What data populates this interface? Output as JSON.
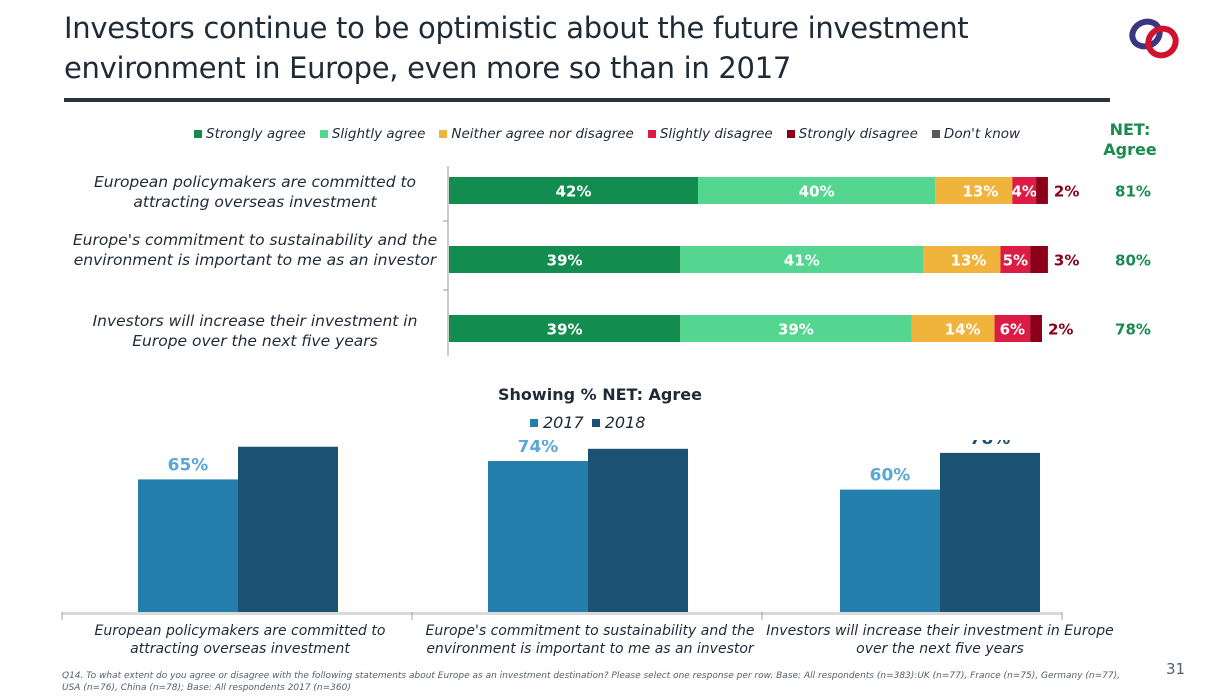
{
  "slide": {
    "title": "Investors continue to be optimistic about the future investment environment in Europe, even more so than in 2017",
    "logo_icon": "interlocking-rings-logo-icon",
    "footnote": "Q14. To what extent do you agree or disagree with the following statements about Europe as an investment destination? Please select one response per row. Base: All respondents (n=383):UK (n=77), France (n=75), Germany (n=77), USA (n=76), China (n=78); Base: All respondents 2017 (n=360)",
    "page_number": "31"
  },
  "chart_data": [
    {
      "type": "bar",
      "orientation": "horizontal-stacked",
      "title": "",
      "categories": [
        "European policymakers are committed to attracting overseas investment",
        "Europe's commitment to sustainability and the environment is important to me as an investor",
        "Investors will increase their investment in Europe over the next five years"
      ],
      "series": [
        {
          "name": "Strongly agree",
          "color": "#138d4f",
          "label_color": "#ffffff",
          "values": [
            42,
            39,
            39
          ]
        },
        {
          "name": "Slightly agree",
          "color": "#54d690",
          "label_color": "#ffffff",
          "values": [
            40,
            41,
            39
          ]
        },
        {
          "name": "Neither agree nor disagree",
          "color": "#f0b33c",
          "label_color": "#ffffff",
          "values": [
            13,
            13,
            14
          ]
        },
        {
          "name": "Slightly disagree",
          "color": "#dc1c45",
          "label_color": "#ffffff",
          "values": [
            4,
            5,
            6
          ]
        },
        {
          "name": "Strongly disagree",
          "color": "#8b0018",
          "label_color": "#8b0018",
          "values": [
            2,
            3,
            2
          ]
        },
        {
          "name": "Don't know",
          "color": "#595959",
          "label_color": "#595959",
          "values": [
            null,
            null,
            null
          ]
        }
      ],
      "net_header": "NET: Agree",
      "net_values": [
        "81%",
        "80%",
        "78%"
      ],
      "net_color": "#1a8a4f",
      "xlim": [
        0,
        100
      ],
      "legend": "top"
    },
    {
      "type": "bar",
      "orientation": "vertical-grouped",
      "title": "Showing % NET: Agree",
      "categories": [
        "European policymakers are committed to attracting overseas investment",
        "Europe's commitment to sustainability and the environment is important to me as an investor",
        "Investors will increase their investment in Europe over the next five years"
      ],
      "series": [
        {
          "name": "2017",
          "color": "#237eab",
          "label_color": "#5aa6d6",
          "values": [
            65,
            74,
            60
          ]
        },
        {
          "name": "2018",
          "color": "#1b5172",
          "label_color": "#1b5172",
          "values": [
            81,
            80,
            78
          ]
        }
      ],
      "ylim": [
        0,
        100
      ],
      "legend": "top",
      "xlabel": "",
      "ylabel": "",
      "grid": false
    }
  ]
}
